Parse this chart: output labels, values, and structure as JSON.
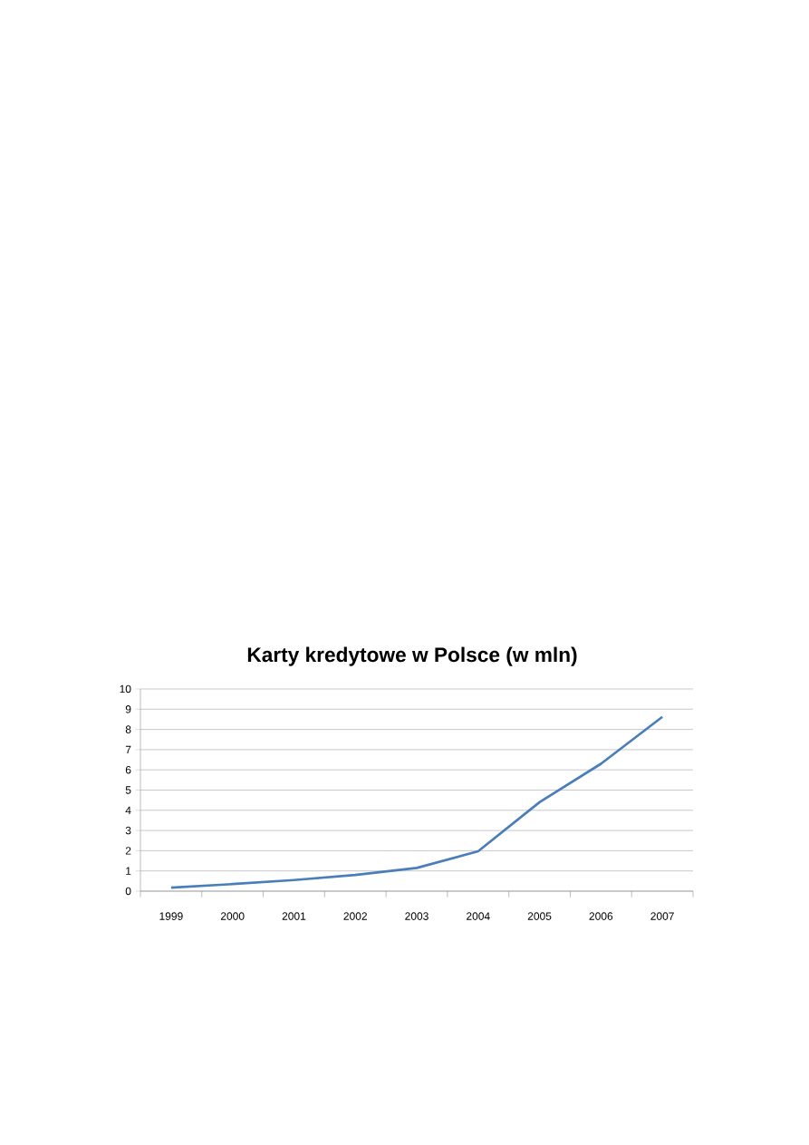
{
  "chart_data": {
    "type": "line",
    "title": "Karty kredytowe w Polsce (w mln)",
    "categories": [
      "1999",
      "2000",
      "2001",
      "2002",
      "2003",
      "2004",
      "2005",
      "2006",
      "2007"
    ],
    "values": [
      0.17,
      0.35,
      0.55,
      0.8,
      1.15,
      1.97,
      4.4,
      6.3,
      8.62
    ],
    "color": "#4a7ebb",
    "ylim": [
      0,
      10
    ],
    "yticks": [
      0,
      1,
      2,
      3,
      4,
      5,
      6,
      7,
      8,
      9,
      10
    ],
    "grid": "y",
    "marker": "none",
    "line_style": "solid"
  }
}
